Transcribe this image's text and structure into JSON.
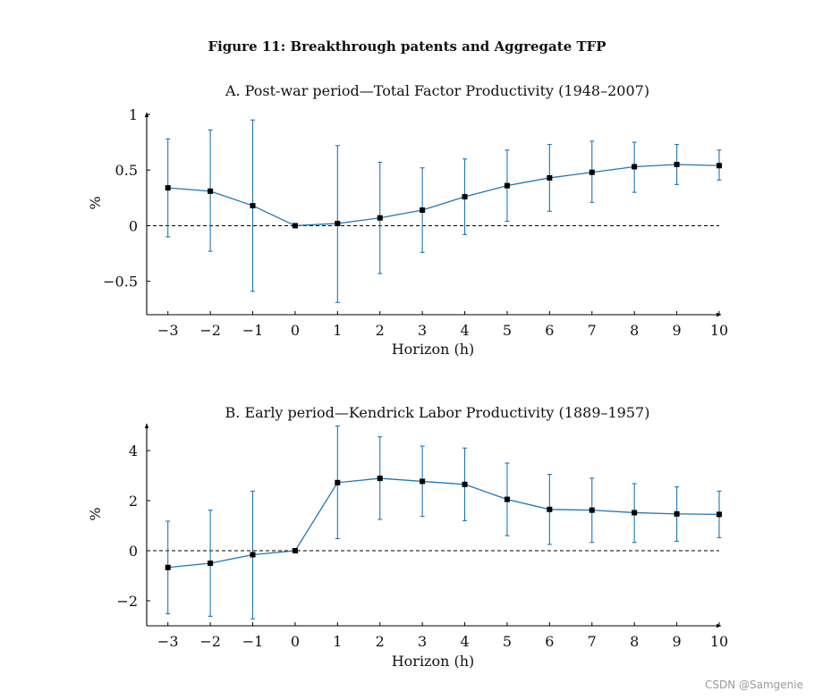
{
  "figure_title": "Figure 11: Breakthrough patents and Aggregate TFP",
  "watermark": "CSDN @Samgenie",
  "colors": {
    "series": "#1f77b4",
    "marker": "#000000",
    "axis": "#000000",
    "zero_line": "#000000"
  },
  "chart_data": [
    {
      "type": "line",
      "title": "A. Post-war period—Total Factor Productivity (1948–2007)",
      "xlabel": "Horizon (h)",
      "ylabel": "%",
      "x": [
        -3,
        -2,
        -1,
        0,
        1,
        2,
        3,
        4,
        5,
        6,
        7,
        8,
        9,
        10
      ],
      "y": [
        0.34,
        0.31,
        0.18,
        0.0,
        0.02,
        0.07,
        0.14,
        0.26,
        0.36,
        0.43,
        0.48,
        0.53,
        0.55,
        0.54
      ],
      "lower": [
        -0.1,
        -0.23,
        -0.59,
        0.0,
        -0.69,
        -0.43,
        -0.24,
        -0.08,
        0.04,
        0.13,
        0.21,
        0.3,
        0.37,
        0.41
      ],
      "upper": [
        0.78,
        0.86,
        0.95,
        0.0,
        0.72,
        0.57,
        0.52,
        0.6,
        0.68,
        0.73,
        0.76,
        0.75,
        0.73,
        0.68
      ],
      "xlim": [
        -3.5,
        10
      ],
      "ylim": [
        -0.8,
        1.0
      ],
      "xticks": [
        -3,
        -2,
        -1,
        0,
        1,
        2,
        3,
        4,
        5,
        6,
        7,
        8,
        9,
        10
      ],
      "xtick_labels": [
        "−3",
        "−2",
        "−1",
        "0",
        "1",
        "2",
        "3",
        "4",
        "5",
        "6",
        "7",
        "8",
        "9",
        "10"
      ],
      "yticks": [
        -0.5,
        0,
        0.5,
        1
      ],
      "ytick_labels": [
        "−0.5",
        "0",
        "0.5",
        "1"
      ],
      "reference_line": 0,
      "grid": false,
      "error_bars": true
    },
    {
      "type": "line",
      "title": "B. Early period—Kendrick Labor Productivity (1889–1957)",
      "xlabel": "Horizon (h)",
      "ylabel": "%",
      "x": [
        -3,
        -2,
        -1,
        0,
        1,
        2,
        3,
        4,
        5,
        6,
        7,
        8,
        9,
        10
      ],
      "y": [
        -0.67,
        -0.5,
        -0.16,
        0.0,
        2.72,
        2.89,
        2.77,
        2.65,
        2.05,
        1.65,
        1.62,
        1.52,
        1.47,
        1.45
      ],
      "lower": [
        -2.52,
        -2.62,
        -2.72,
        0.0,
        0.48,
        1.25,
        1.37,
        1.2,
        0.6,
        0.25,
        0.33,
        0.33,
        0.38,
        0.52
      ],
      "upper": [
        1.18,
        1.62,
        2.38,
        0.0,
        4.98,
        4.55,
        4.18,
        4.1,
        3.5,
        3.05,
        2.9,
        2.68,
        2.55,
        2.38
      ],
      "xlim": [
        -3.5,
        10
      ],
      "ylim": [
        -3,
        5
      ],
      "xticks": [
        -3,
        -2,
        -1,
        0,
        1,
        2,
        3,
        4,
        5,
        6,
        7,
        8,
        9,
        10
      ],
      "xtick_labels": [
        "−3",
        "−2",
        "−1",
        "0",
        "1",
        "2",
        "3",
        "4",
        "5",
        "6",
        "7",
        "8",
        "9",
        "10"
      ],
      "yticks": [
        -2,
        0,
        2,
        4
      ],
      "ytick_labels": [
        "−2",
        "0",
        "2",
        "4"
      ],
      "reference_line": 0,
      "grid": false,
      "error_bars": true
    }
  ]
}
